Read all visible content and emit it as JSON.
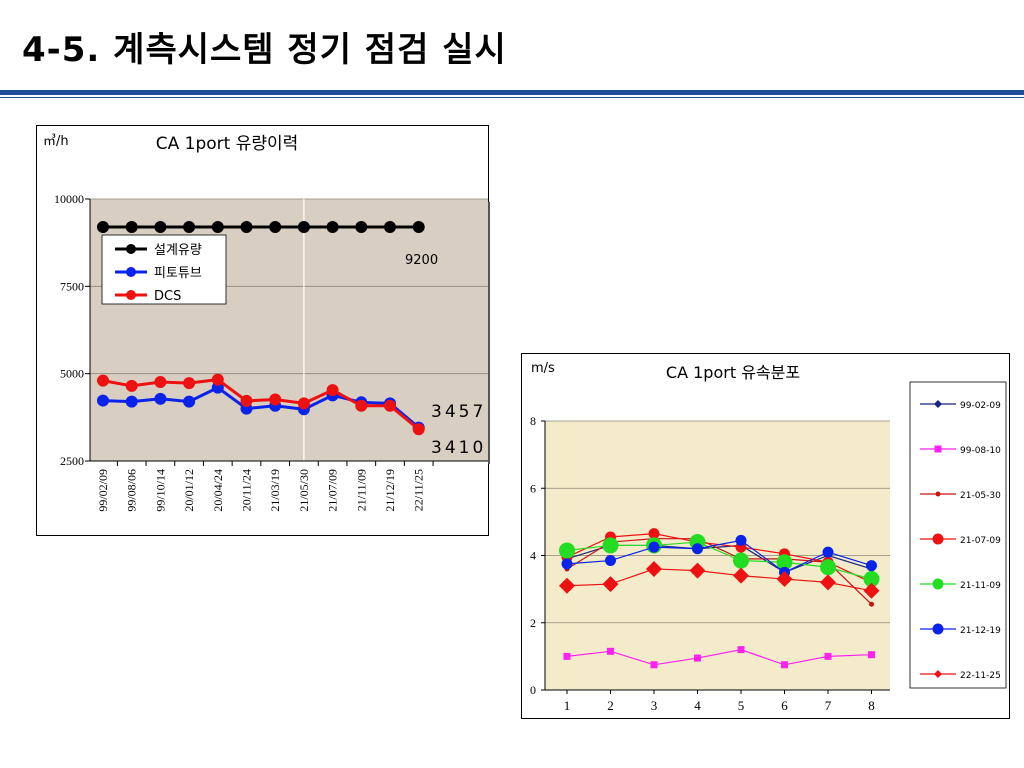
{
  "page": {
    "title": "4-5. 계측시스템 정기 점검 실시"
  },
  "colors": {
    "brand_rule": "#1f4e9c",
    "plot_bg_1": "#d8cfc2",
    "plot_bg_2": "#f4ebcb",
    "value_blue": "#1a3ccc",
    "value_red": "#e00000"
  },
  "chart_data": [
    {
      "type": "line",
      "title": "CA 1port 유량이력",
      "unit": "㎥/h",
      "ylim": [
        2500,
        10000
      ],
      "yticks": [
        2500,
        5000,
        7500,
        10000
      ],
      "grid": true,
      "legend": "top-left",
      "categories": [
        "99/02/09",
        "99/08/06",
        "99/10/14",
        "20/01/12",
        "20/04/24",
        "20/11/24",
        "21/03/19",
        "21/05/30",
        "21/07/09",
        "21/11/09",
        "21/12/19",
        "22/11/25"
      ],
      "series": [
        {
          "name": "설계유량",
          "color": "#000000",
          "values": [
            9200,
            9200,
            9200,
            9200,
            9200,
            9200,
            9200,
            9200,
            9200,
            9200,
            9200,
            9200
          ]
        },
        {
          "name": "피토튜브",
          "color": "#0a23ea",
          "values": [
            4230,
            4200,
            4280,
            4200,
            4600,
            4000,
            4080,
            3980,
            4380,
            4180,
            4150,
            3457
          ]
        },
        {
          "name": "DCS",
          "color": "#ee1111",
          "values": [
            4800,
            4650,
            4760,
            4730,
            4830,
            4220,
            4260,
            4150,
            4530,
            4080,
            4080,
            3410
          ]
        }
      ],
      "annotations": [
        {
          "text": "9200",
          "color": "#000000"
        },
        {
          "text": "3457",
          "color": "#1a3ccc"
        },
        {
          "text": "3410",
          "color": "#e00000"
        }
      ]
    },
    {
      "type": "line",
      "title": "CA 1port 유속분포",
      "unit": "m/s",
      "ylim": [
        0,
        8
      ],
      "yticks": [
        0,
        2,
        4,
        6,
        8
      ],
      "categories": [
        "1",
        "2",
        "3",
        "4",
        "5",
        "6",
        "7",
        "8"
      ],
      "grid": true,
      "legend": "right",
      "series": [
        {
          "name": "99-02-09",
          "color": "#1a237e",
          "marker": "diamond",
          "values": [
            3.9,
            4.3,
            4.3,
            4.2,
            4.3,
            3.5,
            4.0,
            3.6
          ]
        },
        {
          "name": "99-08-10",
          "color": "#ff22ee",
          "marker": "square",
          "values": [
            1.0,
            1.15,
            0.75,
            0.95,
            1.2,
            0.75,
            1.0,
            1.05
          ]
        },
        {
          "name": "21-05-30",
          "color": "#cc1111",
          "marker": "dot",
          "values": [
            3.6,
            4.4,
            4.5,
            4.5,
            3.9,
            3.9,
            3.8,
            2.55
          ]
        },
        {
          "name": "21-07-09",
          "color": "#ee1111",
          "marker": "circle",
          "values": [
            3.95,
            4.55,
            4.65,
            4.4,
            4.25,
            4.05,
            3.8,
            3.2
          ]
        },
        {
          "name": "21-11-09",
          "color": "#22dd22",
          "marker": "bigcircle",
          "values": [
            4.15,
            4.3,
            4.3,
            4.4,
            3.85,
            3.8,
            3.65,
            3.3
          ]
        },
        {
          "name": "21-12-19",
          "color": "#0a23ea",
          "marker": "circle",
          "values": [
            3.75,
            3.85,
            4.25,
            4.2,
            4.45,
            3.5,
            4.1,
            3.7
          ]
        },
        {
          "name": "22-11-25",
          "color": "#ee1111",
          "marker": "bigdiamond",
          "values": [
            3.1,
            3.15,
            3.6,
            3.55,
            3.4,
            3.3,
            3.2,
            2.95
          ]
        }
      ]
    }
  ]
}
